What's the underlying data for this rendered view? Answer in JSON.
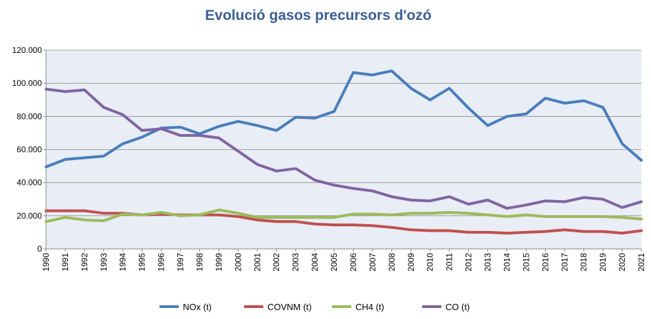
{
  "chart_data": {
    "type": "line",
    "title": "Evolució gasos precursors d'ozó",
    "title_color": "#3a5f95",
    "xlabel": "",
    "ylabel": "",
    "x": [
      "1990",
      "1991",
      "1992",
      "1993",
      "1994",
      "1995",
      "1996",
      "1997",
      "1998",
      "1999",
      "2000",
      "2001",
      "2002",
      "2003",
      "2004",
      "2005",
      "2006",
      "2007",
      "2008",
      "2009",
      "2010",
      "2011",
      "2012",
      "2013",
      "2014",
      "2015",
      "2016",
      "2017",
      "2018",
      "2019",
      "2020",
      "2021"
    ],
    "ylim": [
      0,
      120000
    ],
    "yticks": [
      0,
      20000,
      40000,
      60000,
      80000,
      100000,
      120000
    ],
    "ytick_labels": [
      "0",
      "20.000",
      "40.000",
      "60.000",
      "80.000",
      "100.000",
      "120.000"
    ],
    "grid": true,
    "plot_background": "#e8edf6",
    "legend_position": "bottom",
    "series": [
      {
        "name": "NOx (t)",
        "color": "#4a7ebb",
        "values": [
          49500,
          54000,
          55000,
          56000,
          63500,
          67500,
          73000,
          73500,
          69500,
          74000,
          77000,
          74500,
          71500,
          79500,
          79000,
          83000,
          106500,
          105000,
          107500,
          97000,
          90000,
          97000,
          85000,
          74500,
          80000,
          81500,
          91000,
          88000,
          89500,
          85500,
          63500,
          53500
        ]
      },
      {
        "name": "COVNM (t)",
        "color": "#c0504d",
        "values": [
          23000,
          23000,
          23000,
          21500,
          21500,
          20500,
          21000,
          20500,
          20500,
          20500,
          19500,
          17500,
          16500,
          16500,
          15000,
          14500,
          14500,
          14000,
          13000,
          11500,
          11000,
          11000,
          10000,
          10000,
          9500,
          10000,
          10500,
          11500,
          10500,
          10500,
          9500,
          11000
        ]
      },
      {
        "name": "CH4 (t)",
        "color": "#9bbb59",
        "values": [
          16500,
          19000,
          17500,
          17000,
          21000,
          20500,
          22000,
          20000,
          20500,
          23500,
          21500,
          19000,
          19000,
          19000,
          19000,
          19000,
          21000,
          21000,
          20500,
          21500,
          21500,
          22000,
          21500,
          20500,
          19500,
          20500,
          19500,
          19500,
          19500,
          19500,
          19000,
          18000
        ]
      },
      {
        "name": "CO (t)",
        "color": "#8064a2",
        "values": [
          96500,
          95000,
          96000,
          85500,
          81000,
          71500,
          72500,
          68500,
          68500,
          67000,
          59000,
          51000,
          47000,
          48500,
          41500,
          38500,
          36500,
          35000,
          31500,
          29500,
          29000,
          31500,
          27000,
          29500,
          24500,
          26500,
          29000,
          28500,
          31000,
          30000,
          25000,
          28500
        ]
      }
    ]
  }
}
